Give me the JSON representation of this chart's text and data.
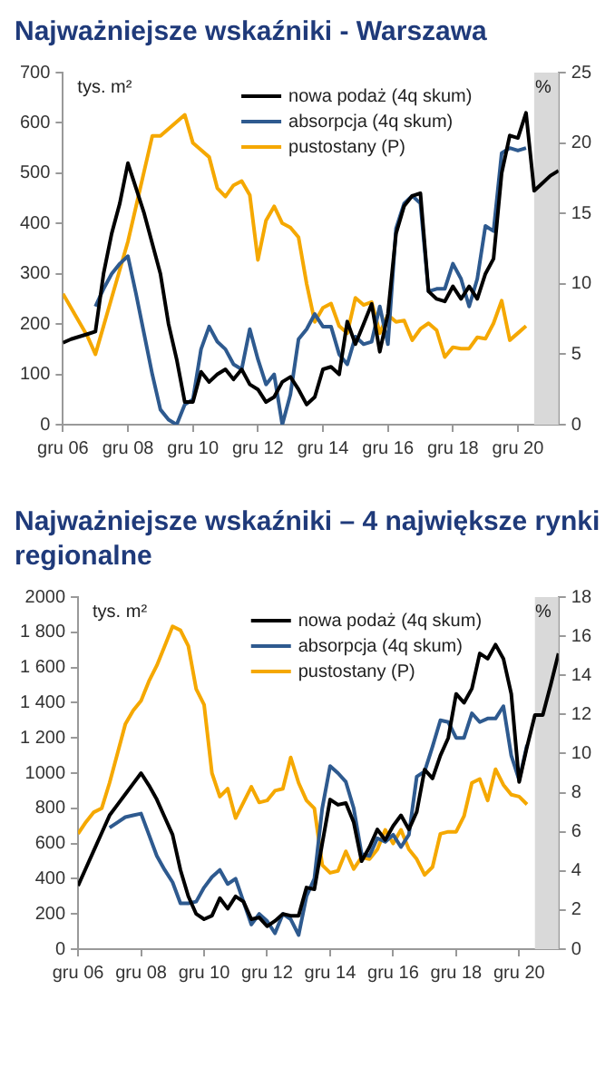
{
  "chart_data": [
    {
      "type": "line",
      "title": "Najważniejsze wskaźniki - Warszawa",
      "ylabel": "tys. m²",
      "y2label": "%",
      "x": [
        "2006-12",
        "2007-03",
        "2007-06",
        "2007-09",
        "2007-12",
        "2008-03",
        "2008-06",
        "2008-09",
        "2008-12",
        "2009-03",
        "2009-06",
        "2009-09",
        "2009-12",
        "2010-03",
        "2010-06",
        "2010-09",
        "2010-12",
        "2011-03",
        "2011-06",
        "2011-09",
        "2011-12",
        "2012-03",
        "2012-06",
        "2012-09",
        "2012-12",
        "2013-03",
        "2013-06",
        "2013-09",
        "2013-12",
        "2014-03",
        "2014-06",
        "2014-09",
        "2014-12",
        "2015-03",
        "2015-06",
        "2015-09",
        "2015-12",
        "2016-03",
        "2016-06",
        "2016-09",
        "2016-12",
        "2017-03",
        "2017-06",
        "2017-09",
        "2017-12",
        "2018-03",
        "2018-06",
        "2018-09",
        "2018-12",
        "2019-03",
        "2019-06",
        "2019-09",
        "2019-12",
        "2020-03",
        "2020-06",
        "2020-09",
        "2020-12",
        "2021-03",
        "2021-06",
        "2021-09",
        "2021-12",
        "2022-03"
      ],
      "series": [
        {
          "name": "nowa podaż (4q skum)",
          "color": "#000000",
          "values": [
            163,
            170,
            175,
            180,
            185,
            300,
            380,
            440,
            520,
            470,
            420,
            360,
            300,
            200,
            130,
            45,
            45,
            105,
            85,
            100,
            110,
            90,
            110,
            80,
            70,
            45,
            55,
            85,
            95,
            70,
            40,
            55,
            110,
            115,
            100,
            205,
            160,
            200,
            240,
            145,
            220,
            380,
            435,
            455,
            460,
            265,
            250,
            245,
            275,
            250,
            275,
            250,
            300,
            330,
            500,
            575,
            570,
            620,
            465,
            480,
            495,
            505
          ]
        },
        {
          "name": "absorpcja (4q skum)",
          "color": "#2e5a8f",
          "values": [
            null,
            null,
            null,
            null,
            235,
            270,
            300,
            320,
            335,
            260,
            180,
            100,
            30,
            10,
            0,
            40,
            50,
            150,
            195,
            165,
            150,
            120,
            110,
            190,
            130,
            80,
            100,
            0,
            60,
            170,
            190,
            220,
            195,
            195,
            140,
            120,
            175,
            160,
            165,
            235,
            160,
            390,
            440,
            455,
            440,
            265,
            270,
            270,
            320,
            290,
            235,
            290,
            395,
            385,
            540,
            550,
            545,
            550,
            null,
            null,
            null,
            null
          ]
        },
        {
          "name": "pustostany (P)",
          "color": "#f5a800",
          "axis": "y2",
          "values": [
            9.3,
            8.3,
            7.3,
            6.3,
            5.0,
            7,
            9,
            11,
            13,
            15.5,
            18,
            20.5,
            20.5,
            21,
            21.5,
            22,
            20,
            19.5,
            19,
            16.8,
            16.2,
            17,
            17.3,
            16.3,
            11.7,
            14.5,
            15.5,
            14.3,
            14.0,
            13.3,
            10,
            7.3,
            8.3,
            8.6,
            7,
            6.5,
            9,
            8.5,
            8.7,
            6.5,
            7.8,
            7.3,
            7.4,
            6,
            6.8,
            7.2,
            6.7,
            4.8,
            5.5,
            5.4,
            5.4,
            6.2,
            6.1,
            7.2,
            8.8,
            6,
            6.5,
            7,
            null,
            null,
            null,
            null
          ]
        }
      ],
      "xlim": [
        "2006-12",
        "2022-03"
      ],
      "xticks": [
        {
          "value": "2006-12",
          "label": "gru 06"
        },
        {
          "value": "2008-12",
          "label": "gru 08"
        },
        {
          "value": "2010-12",
          "label": "gru 10"
        },
        {
          "value": "2012-12",
          "label": "gru 12"
        },
        {
          "value": "2014-12",
          "label": "gru 14"
        },
        {
          "value": "2016-12",
          "label": "gru 16"
        },
        {
          "value": "2018-12",
          "label": "gru 18"
        },
        {
          "value": "2020-12",
          "label": "gru 20"
        }
      ],
      "ylim": [
        0,
        700
      ],
      "yticks": [
        0,
        100,
        200,
        300,
        400,
        500,
        600,
        700
      ],
      "y2lim": [
        0,
        25
      ],
      "y2ticks": [
        0,
        5,
        10,
        15,
        20,
        25
      ],
      "bands": [
        {
          "axis": "x",
          "from": "2021-06",
          "to": "2022-03",
          "color": "#d9d9d9"
        }
      ],
      "grid": false,
      "legend": "top"
    },
    {
      "type": "line",
      "title": "Najważniejsze wskaźniki – 4 największe rynki regionalne",
      "ylabel": "tys. m²",
      "y2label": "%",
      "x": [
        "2006-12",
        "2007-03",
        "2007-06",
        "2007-09",
        "2007-12",
        "2008-03",
        "2008-06",
        "2008-09",
        "2008-12",
        "2009-03",
        "2009-06",
        "2009-09",
        "2009-12",
        "2010-03",
        "2010-06",
        "2010-09",
        "2010-12",
        "2011-03",
        "2011-06",
        "2011-09",
        "2011-12",
        "2012-03",
        "2012-06",
        "2012-09",
        "2012-12",
        "2013-03",
        "2013-06",
        "2013-09",
        "2013-12",
        "2014-03",
        "2014-06",
        "2014-09",
        "2014-12",
        "2015-03",
        "2015-06",
        "2015-09",
        "2015-12",
        "2016-03",
        "2016-06",
        "2016-09",
        "2016-12",
        "2017-03",
        "2017-06",
        "2017-09",
        "2017-12",
        "2018-03",
        "2018-06",
        "2018-09",
        "2018-12",
        "2019-03",
        "2019-06",
        "2019-09",
        "2019-12",
        "2020-03",
        "2020-06",
        "2020-09",
        "2020-12",
        "2021-03",
        "2021-06",
        "2021-09",
        "2021-12",
        "2022-03"
      ],
      "series": [
        {
          "name": "nowa podaż (4q skum)",
          "color": "#000000",
          "values": [
            360,
            460,
            560,
            660,
            760,
            820,
            880,
            940,
            1000,
            930,
            850,
            750,
            650,
            450,
            300,
            200,
            170,
            190,
            290,
            230,
            300,
            270,
            170,
            180,
            130,
            160,
            200,
            190,
            190,
            350,
            340,
            600,
            850,
            820,
            830,
            720,
            500,
            580,
            680,
            620,
            700,
            760,
            680,
            780,
            1020,
            970,
            1100,
            1200,
            1450,
            1400,
            1480,
            1680,
            1650,
            1730,
            1650,
            1450,
            950,
            1150,
            1330,
            1330,
            1500,
            1680
          ]
        },
        {
          "name": "absorpcja (4q skum)",
          "color": "#2e5a8f",
          "values": [
            null,
            null,
            null,
            null,
            690,
            720,
            750,
            760,
            770,
            650,
            530,
            450,
            380,
            260,
            260,
            270,
            350,
            410,
            450,
            370,
            400,
            270,
            140,
            200,
            160,
            90,
            200,
            170,
            80,
            300,
            400,
            800,
            1040,
            1000,
            950,
            800,
            540,
            530,
            630,
            610,
            650,
            580,
            650,
            980,
            1010,
            1150,
            1300,
            1290,
            1200,
            1200,
            1340,
            1290,
            1310,
            1310,
            1380,
            1100,
            960,
            1160,
            null,
            null,
            null,
            null
          ]
        },
        {
          "name": "pustostany (P)",
          "color": "#f5a800",
          "axis": "y2",
          "values": [
            5.9,
            6.5,
            7.0,
            7.2,
            8.5,
            10,
            11.5,
            12.2,
            12.7,
            13.7,
            14.5,
            15.5,
            16.5,
            16.3,
            15.5,
            13.3,
            12.5,
            9,
            7.8,
            8.2,
            6.7,
            7.5,
            8.3,
            7.5,
            7.6,
            8.1,
            8.2,
            9.8,
            8.5,
            7.6,
            7.2,
            4.3,
            3.9,
            4.0,
            5.0,
            4.1,
            4.7,
            4.6,
            5.1,
            6.1,
            5.4,
            6.1,
            5.1,
            4.6,
            3.8,
            4.2,
            5.9,
            6.0,
            6.0,
            6.8,
            8.5,
            8.7,
            7.6,
            9.2,
            8.4,
            7.9,
            7.8,
            7.4,
            null,
            null,
            null,
            null
          ]
        }
      ],
      "xlim": [
        "2006-12",
        "2022-03"
      ],
      "xticks": [
        {
          "value": "2006-12",
          "label": "gru 06"
        },
        {
          "value": "2008-12",
          "label": "gru 08"
        },
        {
          "value": "2010-12",
          "label": "gru 10"
        },
        {
          "value": "2012-12",
          "label": "gru 12"
        },
        {
          "value": "2014-12",
          "label": "gru 14"
        },
        {
          "value": "2016-12",
          "label": "gru 16"
        },
        {
          "value": "2018-12",
          "label": "gru 18"
        },
        {
          "value": "2020-12",
          "label": "gru 20"
        }
      ],
      "ylim": [
        0,
        2000
      ],
      "yticks": [
        0,
        200,
        400,
        600,
        800,
        1000,
        {
          "value": 1200,
          "label": "1 200"
        },
        {
          "value": 1400,
          "label": "1 400"
        },
        {
          "value": 1600,
          "label": "1 600"
        },
        {
          "value": 1800,
          "label": "1 800"
        },
        2000
      ],
      "y2lim": [
        0,
        18
      ],
      "y2ticks": [
        0,
        2,
        4,
        6,
        8,
        10,
        12,
        14,
        16,
        18
      ],
      "bands": [
        {
          "axis": "x",
          "from": "2021-06",
          "to": "2022-03",
          "color": "#d9d9d9"
        }
      ],
      "grid": false,
      "legend": "top"
    }
  ]
}
